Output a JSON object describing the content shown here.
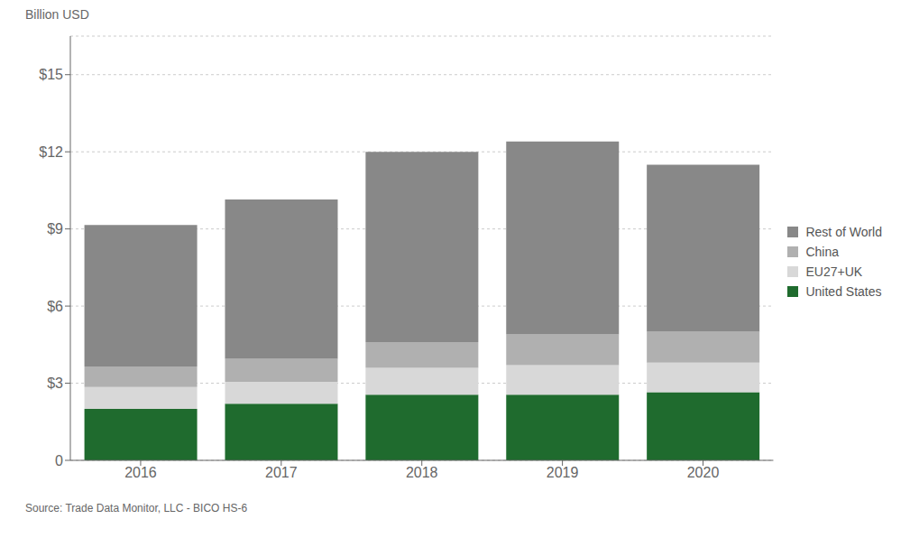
{
  "chart_data": {
    "type": "bar",
    "stacked": true,
    "ylabel": "Billion USD",
    "categories": [
      "2016",
      "2017",
      "2018",
      "2019",
      "2020"
    ],
    "series": [
      {
        "name": "United States",
        "color": "#1f6b2e",
        "values": [
          2.0,
          2.2,
          2.55,
          2.55,
          2.65
        ]
      },
      {
        "name": "EU27+UK",
        "color": "#d8d8d8",
        "values": [
          0.85,
          0.85,
          1.05,
          1.15,
          1.15
        ]
      },
      {
        "name": "China",
        "color": "#b0b0b0",
        "values": [
          0.8,
          0.9,
          1.0,
          1.2,
          1.2
        ]
      },
      {
        "name": "Rest of World",
        "color": "#888888",
        "values": [
          5.5,
          6.2,
          7.4,
          7.5,
          6.5
        ]
      }
    ],
    "ylim": [
      0,
      16.5
    ],
    "yticks": [
      0,
      {
        "value": 3,
        "label": "$3"
      },
      {
        "value": 6,
        "label": "$6"
      },
      {
        "value": 9,
        "label": "$9"
      },
      {
        "value": 12,
        "label": "$12"
      },
      {
        "value": 15,
        "label": "$15"
      }
    ],
    "grid": true,
    "legend": "right",
    "annotations": [
      "Source: Trade Data Monitor, LLC - BICO HS-6"
    ]
  }
}
